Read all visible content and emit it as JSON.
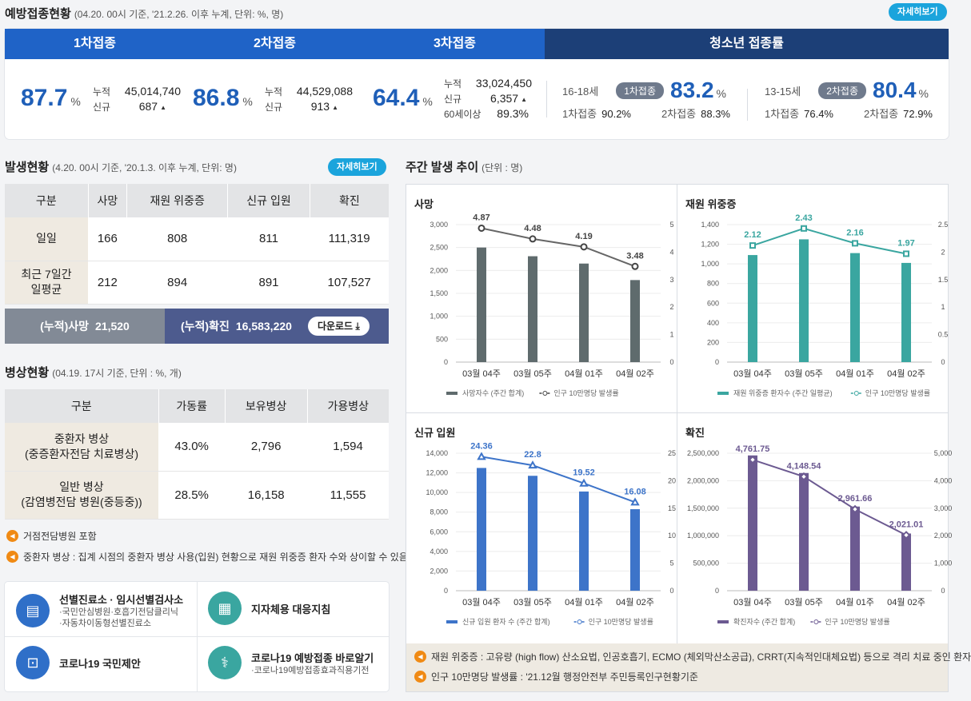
{
  "vaccination": {
    "title": "예방접종현황",
    "subtitle": "(04.20. 00시 기준, '21.2.26. 이후 누계, 단위: %, 명)",
    "detail": "자세히보기",
    "tabs": [
      "1차접종",
      "2차접종",
      "3차접종",
      "청소년 접종률"
    ],
    "pct_unit": "%",
    "lbl_cum": "누적",
    "lbl_new": "신규",
    "lbl_60": "60세이상",
    "up": "▲",
    "dose1": {
      "pct": "87.7",
      "cum": "45,014,740",
      "new": "687"
    },
    "dose2": {
      "pct": "86.8",
      "cum": "44,529,088",
      "new": "913"
    },
    "dose3": {
      "pct": "64.4",
      "cum": "33,024,450",
      "new": "6,357",
      "over60": "89.3%"
    },
    "youth": [
      {
        "age": "16-18세",
        "pill": "1차접종",
        "pct": "83.2",
        "l1": "1차접종",
        "v1": "90.2%",
        "l2": "2차접종",
        "v2": "88.3%"
      },
      {
        "age": "13-15세",
        "pill": "2차접종",
        "pct": "80.4",
        "l1": "1차접종",
        "v1": "76.4%",
        "l2": "2차접종",
        "v2": "72.9%"
      }
    ]
  },
  "occurrence": {
    "title": "발생현황",
    "subtitle": "(4.20. 00시 기준, '20.1.3. 이후 누계, 단위: 명)",
    "detail": "자세히보기",
    "headers": [
      "구분",
      "사망",
      "재원 위중증",
      "신규 입원",
      "확진"
    ],
    "rows": [
      {
        "label": "일일",
        "values": [
          "166",
          "808",
          "811",
          "111,319"
        ]
      },
      {
        "label": "최근 7일간\n일평균",
        "values": [
          "212",
          "894",
          "891",
          "107,527"
        ]
      }
    ],
    "cum_death_label": "(누적)사망",
    "cum_death": "21,520",
    "cum_conf_label": "(누적)확진",
    "cum_conf": "16,583,220",
    "download": "다운로드"
  },
  "beds": {
    "title": "병상현황",
    "subtitle": "(04.19. 17시 기준, 단위 : %, 개)",
    "headers": [
      "구분",
      "가동률",
      "보유병상",
      "가용병상"
    ],
    "rows": [
      {
        "label": "중환자 병상\n(중증환자전담 치료병상)",
        "values": [
          "43.0%",
          "2,796",
          "1,594"
        ]
      },
      {
        "label": "일반 병상\n(감염병전담 병원(중등중))",
        "values": [
          "28.5%",
          "16,158",
          "11,555"
        ]
      }
    ],
    "notes": [
      "거점전담병원 포함",
      "중환자 병상 : 집계 시점의 중환자 병상 사용(입원) 현황으로 재원 위중증 환자 수와 상이할 수 있음"
    ]
  },
  "links": [
    {
      "title": "선별진료소 · 임시선별검사소",
      "sub1": "·국민안심병원·호흡기전담클리닉",
      "sub2": "·자동차이동형선별진료소",
      "icon": "clipboard-icon",
      "color": "#2f6fc8"
    },
    {
      "title": "지자체용 대응지침",
      "sub1": "",
      "sub2": "",
      "icon": "building-icon",
      "color": "#3aa6a0"
    },
    {
      "title": "코로나19 국민제안",
      "sub1": "",
      "sub2": "",
      "icon": "person-card-icon",
      "color": "#2f6fc8"
    },
    {
      "title": "코로나19 예방접종 바로알기",
      "sub1": "·코로나19예방접종효과직용기전",
      "sub2": "",
      "icon": "stethoscope-icon",
      "color": "#3aa6a0"
    }
  ],
  "weekly": {
    "title": "주간 발생 추이",
    "subtitle": "(단위 : 명)",
    "notes": [
      "재원 위중증 : 고유량 (high flow) 산소요법, 인공호흡기, ECMO (체외막산소공급), CRRT(지속적인대체요법) 등으로 격리 치료 중인 환자",
      "인구 10만명당 발생률 : '21.12월 행정안전부 주민등록인구현황기준"
    ]
  },
  "chart_data": [
    {
      "type": "bar",
      "title": "사망",
      "categories": [
        "03월 04주",
        "03월 05주",
        "04월 01주",
        "04월 02주"
      ],
      "series": [
        {
          "name": "사망자수 (주간 합계)",
          "values": [
            2500,
            2310,
            2150,
            1790
          ],
          "color": "#5f6b6d"
        },
        {
          "name": "인구 10만명당 발생률",
          "values": [
            4.87,
            4.48,
            4.19,
            3.48
          ],
          "color": "#555555",
          "axis": "right",
          "labels": [
            "4.87",
            "4.48",
            "4.19",
            "3.48"
          ]
        }
      ],
      "yleft": [
        0,
        3000
      ],
      "yleft_ticks": [
        0,
        500,
        1000,
        1500,
        2000,
        2500,
        3000
      ],
      "yleft_labels": [
        "0",
        "500",
        "1,000",
        "1,500",
        "2,000",
        "2,500",
        "3,000"
      ],
      "yright": [
        0,
        5
      ],
      "yright_ticks": [
        0,
        1,
        2,
        3,
        4,
        5
      ],
      "yright_labels": [
        "0",
        "1",
        "2",
        "3",
        "4",
        "5"
      ],
      "marker": "circle"
    },
    {
      "type": "bar",
      "title": "재원 위중증",
      "categories": [
        "03월 04주",
        "03월 05주",
        "04월 01주",
        "04월 02주"
      ],
      "series": [
        {
          "name": "재원 위중증 환자수 (주간 일평균)",
          "values": [
            1090,
            1250,
            1110,
            1010
          ],
          "color": "#3aa6a0"
        },
        {
          "name": "인구 10만명당 발생률",
          "values": [
            2.12,
            2.43,
            2.16,
            1.97
          ],
          "color": "#3aa6a0",
          "axis": "right",
          "labels": [
            "2.12",
            "2.43",
            "2.16",
            "1.97"
          ]
        }
      ],
      "yleft": [
        0,
        1400
      ],
      "yleft_ticks": [
        0,
        200,
        400,
        600,
        800,
        1000,
        1200,
        1400
      ],
      "yleft_labels": [
        "0",
        "200",
        "400",
        "600",
        "800",
        "1,000",
        "1,200",
        "1,400"
      ],
      "yright": [
        0,
        2.5
      ],
      "yright_ticks": [
        0,
        0.5,
        1,
        1.5,
        2,
        2.5
      ],
      "yright_labels": [
        "0",
        "0.5",
        "1",
        "1.5",
        "2",
        "2.5"
      ],
      "marker": "square"
    },
    {
      "type": "bar",
      "title": "신규 입원",
      "categories": [
        "03월 04주",
        "03월 05주",
        "04월 01주",
        "04월 02주"
      ],
      "series": [
        {
          "name": "신규 입원 환자 수 (주간 합계)",
          "values": [
            12500,
            11700,
            10100,
            8300
          ],
          "color": "#3d74c9"
        },
        {
          "name": "인구 10만명당 발생률",
          "values": [
            24.36,
            22.8,
            19.52,
            16.08
          ],
          "color": "#3d74c9",
          "axis": "right",
          "labels": [
            "24.36",
            "22.8",
            "19.52",
            "16.08"
          ]
        }
      ],
      "yleft": [
        0,
        14000
      ],
      "yleft_ticks": [
        0,
        2000,
        4000,
        6000,
        8000,
        10000,
        12000,
        14000
      ],
      "yleft_labels": [
        "0",
        "2,000",
        "4,000",
        "6,000",
        "8,000",
        "10,000",
        "12,000",
        "14,000"
      ],
      "yright": [
        0,
        25
      ],
      "yright_ticks": [
        0,
        5,
        10,
        15,
        20,
        25
      ],
      "yright_labels": [
        "0",
        "5",
        "10",
        "15",
        "20",
        "25"
      ],
      "marker": "triangle"
    },
    {
      "type": "bar",
      "title": "확진",
      "categories": [
        "03월 04주",
        "03월 05주",
        "04월 01주",
        "04월 02주"
      ],
      "series": [
        {
          "name": "확진자수 (주간 합계)",
          "values": [
            2460000,
            2140000,
            1530000,
            1040000
          ],
          "color": "#6c5a91"
        },
        {
          "name": "인구 10만명당 발생률",
          "values": [
            4761.75,
            4148.54,
            2961.66,
            2021.01
          ],
          "color": "#6c5a91",
          "axis": "right",
          "labels": [
            "4,761.75",
            "4,148.54",
            "2,961.66",
            "2,021.01"
          ]
        }
      ],
      "yleft": [
        0,
        2500000
      ],
      "yleft_ticks": [
        0,
        500000,
        1000000,
        1500000,
        2000000,
        2500000
      ],
      "yleft_labels": [
        "0",
        "500,000",
        "1,000,000",
        "1,500,000",
        "2,000,000",
        "2,500,000"
      ],
      "yright": [
        0,
        5000
      ],
      "yright_ticks": [
        0,
        1000,
        2000,
        3000,
        4000,
        5000
      ],
      "yright_labels": [
        "0",
        "1,000",
        "2,000",
        "3,000",
        "4,000",
        "5,000"
      ],
      "marker": "diamond"
    }
  ]
}
